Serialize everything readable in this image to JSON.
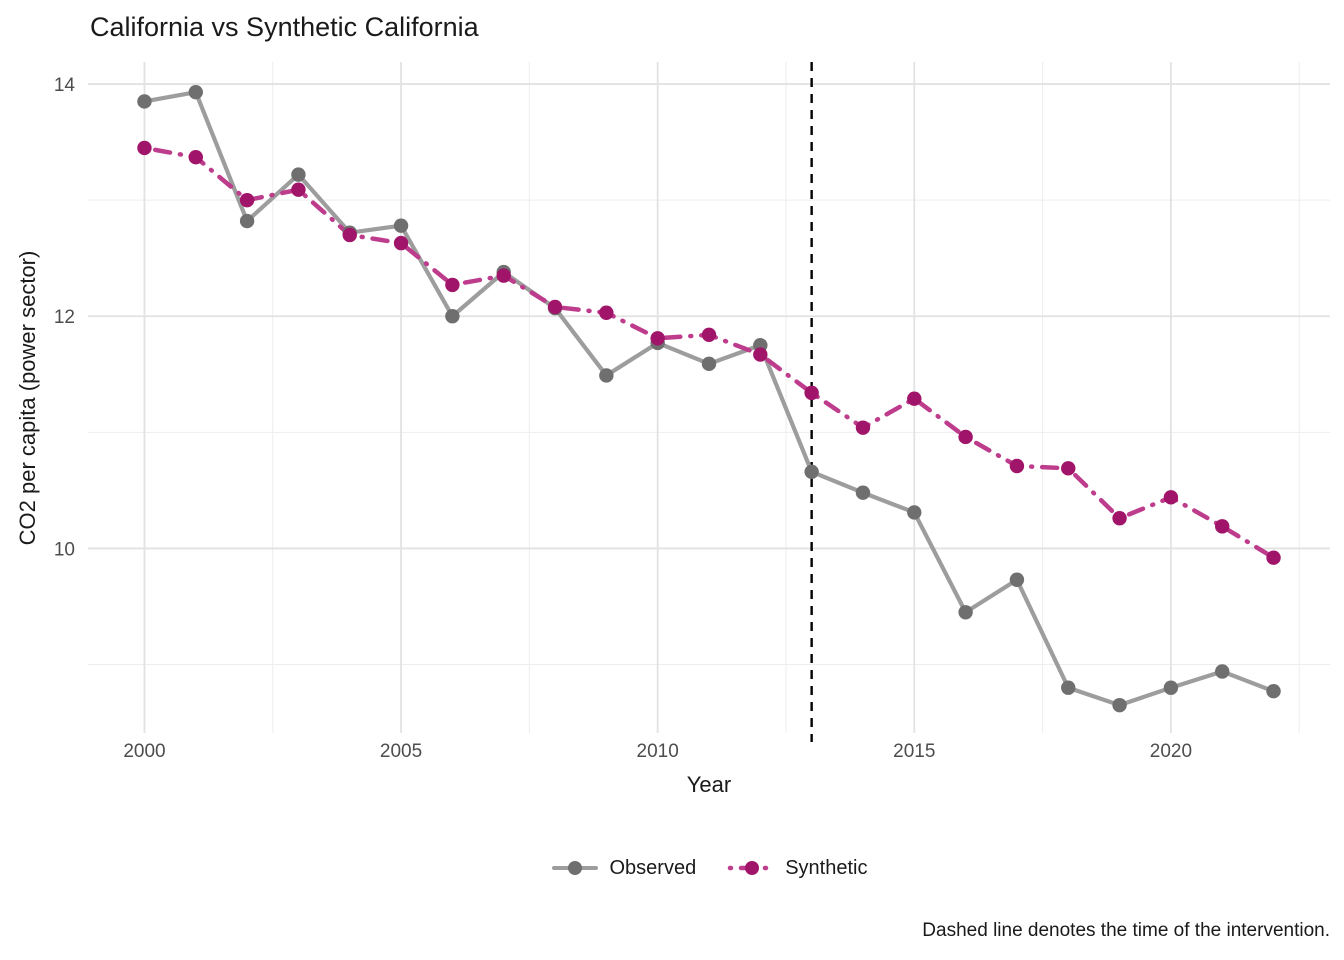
{
  "chart": {
    "title": "California vs Synthetic California",
    "xlabel": "Year",
    "ylabel": "CO2 per capita (power sector)",
    "caption": "Dashed line denotes the time of the intervention."
  },
  "legend": {
    "observed": "Observed",
    "synthetic": "Synthetic"
  },
  "colors": {
    "observed_line": "#9d9d9d",
    "observed_point": "#6f6f6f",
    "synthetic_line": "#be3c8c",
    "synthetic_point": "#a01469",
    "intervention_line": "#000000",
    "grid_major": "#e2e2e2",
    "grid_minor": "#ededed",
    "tick_label": "#4d4d4d",
    "text": "#1a1a1a",
    "background": "#ffffff"
  },
  "chart_data": {
    "type": "line",
    "title": "California vs Synthetic California",
    "xlabel": "Year",
    "ylabel": "CO2 per capita (power sector)",
    "x": [
      2000,
      2001,
      2002,
      2003,
      2004,
      2005,
      2006,
      2007,
      2008,
      2009,
      2010,
      2011,
      2012,
      2013,
      2014,
      2015,
      2016,
      2017,
      2018,
      2019,
      2020,
      2021,
      2022
    ],
    "series": [
      {
        "name": "Observed",
        "style": "solid",
        "values": [
          13.85,
          13.93,
          12.82,
          13.22,
          12.72,
          12.78,
          12.0,
          12.38,
          12.07,
          11.49,
          11.77,
          11.59,
          11.75,
          10.66,
          10.48,
          10.31,
          9.45,
          9.73,
          8.8,
          8.65,
          8.8,
          8.94,
          8.77
        ]
      },
      {
        "name": "Synthetic",
        "style": "dot-dash",
        "values": [
          13.45,
          13.37,
          13.0,
          13.09,
          12.7,
          12.63,
          12.27,
          12.35,
          12.08,
          12.03,
          11.81,
          11.84,
          11.67,
          11.34,
          11.04,
          11.29,
          10.96,
          10.71,
          10.69,
          10.26,
          10.44,
          10.19,
          9.92
        ]
      }
    ],
    "x_ticks": [
      2000,
      2005,
      2010,
      2015,
      2020
    ],
    "x_minor": [
      2002.5,
      2007.5,
      2012.5,
      2017.5,
      2022.5
    ],
    "y_ticks": [
      10,
      12,
      14
    ],
    "y_minor": [
      9,
      11,
      13
    ],
    "x_range": [
      1998.9,
      2023.1
    ],
    "y_range": [
      8.41,
      14.19
    ],
    "intervention_x": 2013,
    "annotation": "Dashed line denotes the time of the intervention.",
    "legend_position": "bottom",
    "grid": true
  }
}
